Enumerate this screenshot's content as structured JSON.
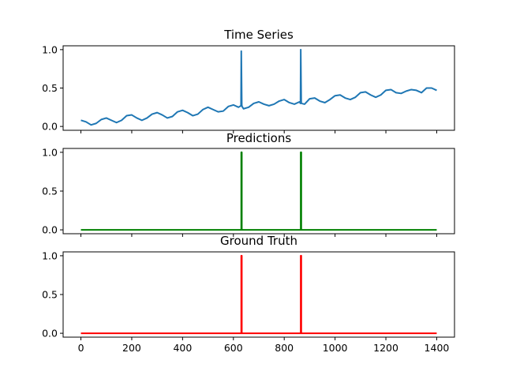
{
  "chart_data": [
    {
      "type": "line",
      "title": "Time Series",
      "xlim": [
        -70,
        1470
      ],
      "ylim": [
        -0.05,
        1.05
      ],
      "yticks": [
        0.0,
        0.5,
        1.0
      ],
      "ytick_labels": [
        "0.0",
        "0.5",
        "1.0"
      ],
      "show_xtick_labels": false,
      "color": "#1f77b4",
      "series": [
        {
          "description": "noisy sinusoidal series with upward trend (period ~110), two spikes",
          "x": [
            0,
            20,
            40,
            60,
            80,
            100,
            120,
            140,
            160,
            180,
            200,
            220,
            240,
            260,
            280,
            300,
            320,
            340,
            360,
            380,
            400,
            420,
            440,
            460,
            480,
            500,
            520,
            540,
            560,
            580,
            600,
            620,
            630,
            631,
            633,
            634,
            640,
            660,
            680,
            700,
            720,
            740,
            760,
            780,
            800,
            820,
            840,
            860,
            864,
            865,
            867,
            868,
            880,
            900,
            920,
            940,
            960,
            980,
            1000,
            1020,
            1040,
            1060,
            1080,
            1100,
            1120,
            1140,
            1160,
            1180,
            1200,
            1220,
            1240,
            1260,
            1280,
            1300,
            1320,
            1340,
            1360,
            1380,
            1400
          ],
          "y": [
            0.08,
            0.06,
            0.02,
            0.04,
            0.09,
            0.11,
            0.08,
            0.05,
            0.08,
            0.14,
            0.15,
            0.11,
            0.08,
            0.11,
            0.16,
            0.18,
            0.15,
            0.11,
            0.13,
            0.19,
            0.21,
            0.18,
            0.14,
            0.16,
            0.22,
            0.25,
            0.22,
            0.19,
            0.2,
            0.26,
            0.28,
            0.25,
            0.27,
            0.98,
            0.28,
            0.26,
            0.23,
            0.25,
            0.3,
            0.32,
            0.29,
            0.27,
            0.29,
            0.33,
            0.35,
            0.31,
            0.29,
            0.32,
            0.3,
            1.0,
            0.31,
            0.3,
            0.29,
            0.36,
            0.37,
            0.33,
            0.31,
            0.35,
            0.4,
            0.41,
            0.37,
            0.35,
            0.38,
            0.44,
            0.45,
            0.41,
            0.38,
            0.41,
            0.47,
            0.48,
            0.44,
            0.43,
            0.46,
            0.48,
            0.47,
            0.44,
            0.5,
            0.5,
            0.47
          ]
        }
      ]
    },
    {
      "type": "line",
      "title": "Predictions",
      "xlim": [
        -70,
        1470
      ],
      "ylim": [
        -0.05,
        1.05
      ],
      "yticks": [
        0.0,
        0.5,
        1.0
      ],
      "ytick_labels": [
        "0.0",
        "0.5",
        "1.0"
      ],
      "show_xtick_labels": false,
      "color": "#008000",
      "series": [
        {
          "x": [
            0,
            631,
            631,
            633,
            633,
            865,
            865,
            867,
            867,
            1400
          ],
          "y": [
            0,
            0,
            1,
            1,
            0,
            0,
            1,
            1,
            0,
            0
          ]
        }
      ]
    },
    {
      "type": "line",
      "title": "Ground Truth",
      "xlim": [
        -70,
        1470
      ],
      "ylim": [
        -0.05,
        1.05
      ],
      "yticks": [
        0.0,
        0.5,
        1.0
      ],
      "ytick_labels": [
        "0.0",
        "0.5",
        "1.0"
      ],
      "xticks": [
        0,
        200,
        400,
        600,
        800,
        1000,
        1200,
        1400
      ],
      "xtick_labels": [
        "0",
        "200",
        "400",
        "600",
        "800",
        "1000",
        "1200",
        "1400"
      ],
      "show_xtick_labels": true,
      "color": "#ff0000",
      "series": [
        {
          "x": [
            0,
            631,
            631,
            633,
            633,
            865,
            865,
            867,
            867,
            1400
          ],
          "y": [
            0,
            0,
            1,
            1,
            0,
            0,
            1,
            1,
            0,
            0
          ]
        }
      ]
    }
  ]
}
